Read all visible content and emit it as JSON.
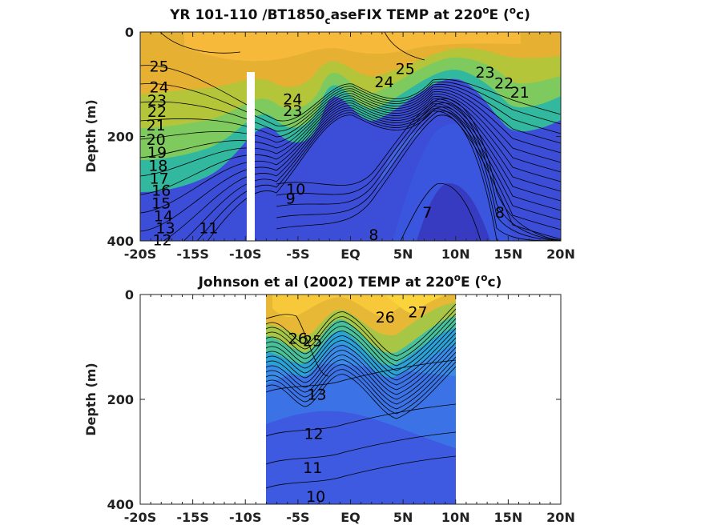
{
  "chart_data": [
    {
      "type": "heatmap",
      "title_parts": {
        "main": "YR 101-110 /BT1850",
        "sub": "c",
        "rest": "aseFIX TEMP at 220",
        "sup1": "o",
        "after_sup1": "E (",
        "sup2": "o",
        "tail": "c)"
      },
      "ylabel": "Depth (m)",
      "x_ticks": [
        "-20S",
        "-15S",
        "-10S",
        "-5S",
        "EQ",
        "5N",
        "10N",
        "15N",
        "20N"
      ],
      "x_values": [
        -20,
        -15,
        -10,
        -5,
        0,
        5,
        10,
        15,
        20
      ],
      "y_ticks": [
        "0",
        "200",
        "400"
      ],
      "y_values": [
        0,
        200,
        400
      ],
      "xlim": [
        -20,
        20
      ],
      "ylim": [
        400,
        0
      ],
      "colormap": "parula",
      "missing_band": {
        "x": [
          -10.5,
          -9.6
        ],
        "y_top": 75
      },
      "contour_labels": [
        {
          "text": "25",
          "x": -18.2,
          "y": 65
        },
        {
          "text": "24",
          "x": -18.2,
          "y": 105
        },
        {
          "text": "23",
          "x": -18.4,
          "y": 130
        },
        {
          "text": "22",
          "x": -18.4,
          "y": 152
        },
        {
          "text": "21",
          "x": -18.5,
          "y": 178
        },
        {
          "text": "20",
          "x": -18.5,
          "y": 205
        },
        {
          "text": "19",
          "x": -18.4,
          "y": 230
        },
        {
          "text": "18",
          "x": -18.3,
          "y": 255
        },
        {
          "text": "17",
          "x": -18.2,
          "y": 280
        },
        {
          "text": "16",
          "x": -18.0,
          "y": 303
        },
        {
          "text": "15",
          "x": -18.0,
          "y": 327
        },
        {
          "text": "14",
          "x": -17.8,
          "y": 352
        },
        {
          "text": "13",
          "x": -17.6,
          "y": 375
        },
        {
          "text": "12",
          "x": -17.9,
          "y": 398
        },
        {
          "text": "11",
          "x": -13.5,
          "y": 375
        },
        {
          "text": "24",
          "x": -5.5,
          "y": 128
        },
        {
          "text": "23",
          "x": -5.5,
          "y": 150
        },
        {
          "text": "9",
          "x": -5.7,
          "y": 318
        },
        {
          "text": "10",
          "x": -5.2,
          "y": 300
        },
        {
          "text": "25",
          "x": 5.2,
          "y": 70
        },
        {
          "text": "24",
          "x": 3.2,
          "y": 95
        },
        {
          "text": "23",
          "x": 12.8,
          "y": 77
        },
        {
          "text": "22",
          "x": 14.6,
          "y": 97
        },
        {
          "text": "21",
          "x": 16.1,
          "y": 115
        },
        {
          "text": "8",
          "x": 2.2,
          "y": 388
        },
        {
          "text": "7",
          "x": 7.3,
          "y": 345
        },
        {
          "text": "8",
          "x": 14.2,
          "y": 345
        }
      ]
    },
    {
      "type": "heatmap",
      "title_parts": {
        "main": "Johnson et al (2002) TEMP at 220",
        "sup1": "o",
        "after_sup1": "E (",
        "sup2": "o",
        "tail": "c)"
      },
      "ylabel": "Depth (m)",
      "x_ticks": [
        "-20S",
        "-15S",
        "-10S",
        "-5S",
        "EQ",
        "5N",
        "10N",
        "15N",
        "20N"
      ],
      "x_values": [
        -20,
        -15,
        -10,
        -5,
        0,
        5,
        10,
        15,
        20
      ],
      "y_ticks": [
        "0",
        "200",
        "400"
      ],
      "y_values": [
        0,
        200,
        400
      ],
      "xlim": [
        -20,
        20
      ],
      "ylim": [
        400,
        0
      ],
      "data_xlim": [
        -8,
        10
      ],
      "colormap": "parula",
      "contour_labels": [
        {
          "text": "26",
          "x": 3.3,
          "y": 43
        },
        {
          "text": "27",
          "x": 6.4,
          "y": 33
        },
        {
          "text": "26",
          "x": -5.0,
          "y": 83
        },
        {
          "text": "25",
          "x": -3.6,
          "y": 88
        },
        {
          "text": "13",
          "x": -3.2,
          "y": 190
        },
        {
          "text": "12",
          "x": -3.5,
          "y": 265
        },
        {
          "text": "11",
          "x": -3.6,
          "y": 330
        },
        {
          "text": "10",
          "x": -3.3,
          "y": 385
        }
      ]
    }
  ]
}
